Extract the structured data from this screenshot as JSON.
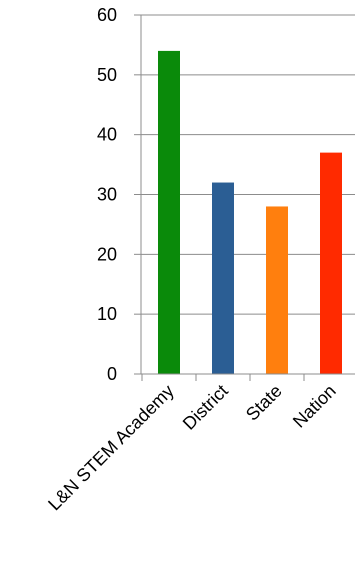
{
  "chart_data": {
    "type": "bar",
    "title": "",
    "xlabel": "",
    "ylabel": "",
    "categories": [
      "L&N STEM Academy",
      "District",
      "State",
      "Nation"
    ],
    "values": [
      54,
      32,
      28,
      37
    ],
    "colors": [
      "#0a8a0a",
      "#2b5e94",
      "#ff7f0e",
      "#ff2a00"
    ],
    "ylim": [
      0,
      60
    ],
    "yticks": [
      0,
      10,
      20,
      30,
      40,
      50,
      60
    ],
    "grid": true,
    "legend": "none"
  }
}
